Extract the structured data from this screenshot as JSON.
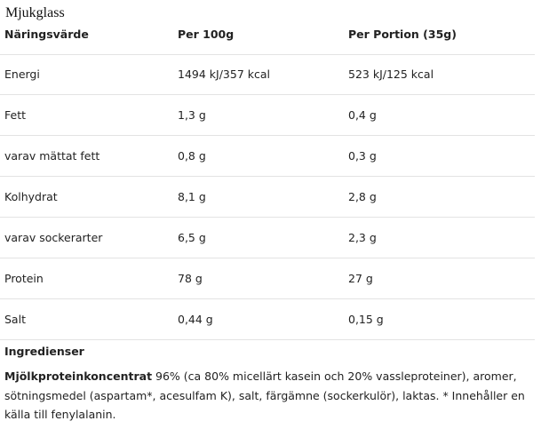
{
  "title": "Mjukglass",
  "table": {
    "header": [
      "Näringsvärde",
      "Per 100g",
      "Per Portion (35g)"
    ],
    "rows": [
      [
        "Energi",
        "1494 kJ/357 kcal",
        "523 kJ/125 kcal"
      ],
      [
        "Fett",
        "1,3 g",
        "0,4 g"
      ],
      [
        "varav mättat fett",
        "0,8 g",
        "0,3 g"
      ],
      [
        "Kolhydrat",
        "8,1 g",
        "2,8 g"
      ],
      [
        "varav sockerarter",
        "6,5 g",
        "2,3 g"
      ],
      [
        "Protein",
        "78 g",
        "27 g"
      ],
      [
        "Salt",
        "0,44 g",
        "0,15 g"
      ]
    ]
  },
  "ingredients": {
    "heading": "Ingredienser",
    "bold": "Mjölkproteinkoncentrat",
    "text": " 96% (ca 80% micellärt kasein och 20% vassleproteiner), aromer, sötningsmedel (aspartam*, acesulfam K), salt, färgämne (sockerkulör), laktas. * Innehåller en källa till fenylalanin."
  }
}
